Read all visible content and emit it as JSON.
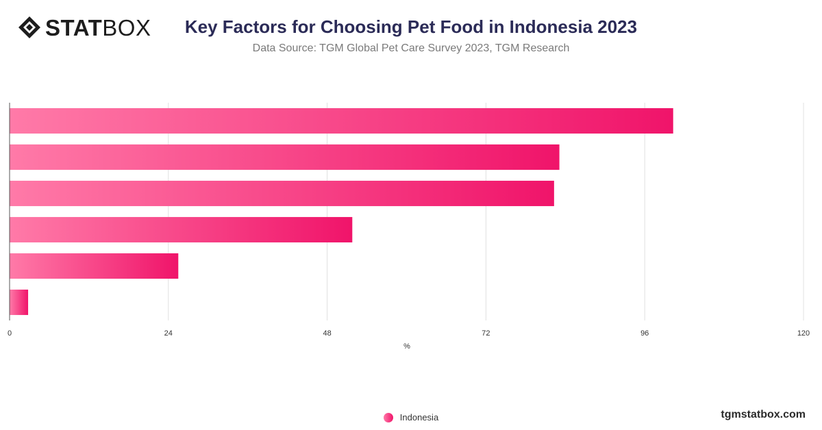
{
  "brand": {
    "logo_bold": "STAT",
    "logo_light": "BOX",
    "logo_icon": "diamond-logo-icon",
    "site": "tgmstatbox.com"
  },
  "header": {
    "title": "Key Factors for Choosing Pet Food in Indonesia 2023",
    "subtitle": "Data Source: TGM Global Pet Care Survey 2023, TGM Research"
  },
  "legend": {
    "items": [
      "Indonesia"
    ]
  },
  "chart_data": {
    "type": "bar",
    "orientation": "horizontal",
    "title": "Key Factors for Choosing Pet Food in Indonesia 2023",
    "xlabel": "%",
    "ylabel": "",
    "xlim": [
      0,
      120
    ],
    "xticks": [
      0,
      24,
      48,
      72,
      96,
      120
    ],
    "categories": [
      "",
      "",
      "",
      "",
      "",
      ""
    ],
    "series": [
      {
        "name": "Indonesia",
        "values": [
          100.3,
          83.1,
          82.3,
          51.8,
          25.5,
          2.8
        ]
      }
    ],
    "grid": true,
    "legend_position": "bottom",
    "colors": {
      "bar_start": "#ff7aa8",
      "bar_end": "#f0146a",
      "grid": "#e0e0e0",
      "axis": "#555555"
    }
  }
}
